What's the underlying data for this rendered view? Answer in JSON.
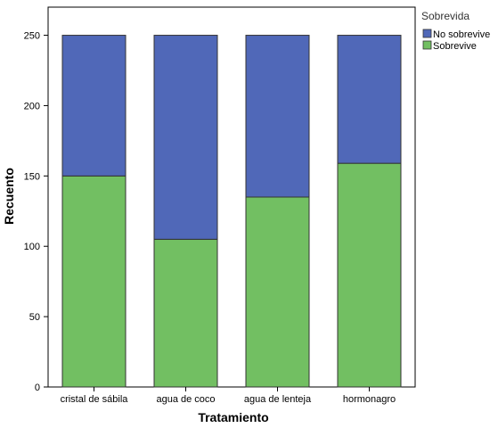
{
  "chart_data": {
    "type": "bar",
    "stacked": true,
    "categories": [
      "cristal de sábila",
      "agua de coco",
      "agua de lenteja",
      "hormonagro"
    ],
    "series": [
      {
        "name": "Sobrevive",
        "values": [
          150,
          105,
          135,
          159
        ],
        "color": "#72bf62"
      },
      {
        "name": "No sobrevive",
        "values": [
          100,
          145,
          115,
          91
        ],
        "color": "#5068b8"
      }
    ],
    "xlabel": "Tratamiento",
    "ylabel": "Recuento",
    "ylim": [
      0,
      270
    ],
    "yticks": [
      0,
      50,
      100,
      150,
      200,
      250
    ],
    "grid": false,
    "legend": {
      "title": "Sobrevida",
      "placement": "top-right",
      "entries": [
        "No sobrevive",
        "Sobrevive"
      ]
    }
  }
}
